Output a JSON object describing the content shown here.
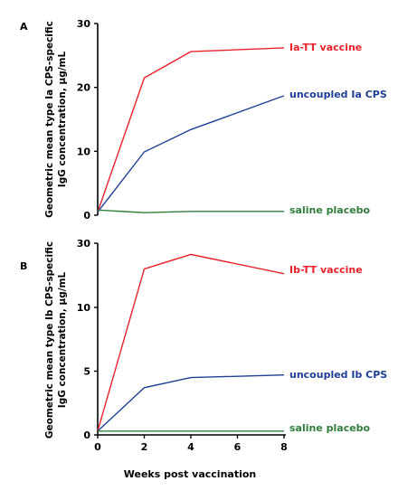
{
  "xlabel": "Weeks post vaccination",
  "chart_data": [
    {
      "type": "line",
      "panel_label": "A",
      "ylabel_lines": [
        "Geometric mean type Ia CPS-specific",
        "IgG concentration, µg/mL"
      ],
      "x": [
        0,
        2,
        4,
        8
      ],
      "xlim": [
        0,
        8
      ],
      "xticks": [
        0,
        2,
        4,
        6,
        8
      ],
      "ylim": [
        0,
        30
      ],
      "yticks": [
        0,
        10,
        20,
        30
      ],
      "grid": false,
      "series": [
        {
          "name": "Ia-TT vaccine",
          "color": "#e8212b",
          "values": [
            0.5,
            21.5,
            25.6,
            26.2
          ]
        },
        {
          "name": "uncoupled Ia CPS",
          "color": "#1f3f94",
          "values": [
            0.5,
            9.9,
            13.4,
            18.7
          ]
        },
        {
          "name": "saline placebo",
          "color": "#2f7d3b",
          "values": [
            0.8,
            0.4,
            0.6,
            0.6
          ]
        }
      ]
    },
    {
      "type": "line",
      "panel_label": "B",
      "ylabel_lines": [
        "Geometric mean type Ib CPS-specific",
        "IgG concentration, µg/mL"
      ],
      "x": [
        0,
        2,
        4,
        8
      ],
      "xlim": [
        0,
        8
      ],
      "xticks": [
        0,
        2,
        4,
        6,
        8
      ],
      "ylim": [
        0,
        30
      ],
      "yticks": [
        0,
        5,
        10,
        30
      ],
      "axis_break": true,
      "grid": false,
      "series": [
        {
          "name": "Ib-TT vaccine",
          "color": "#e8212b",
          "values": [
            0.3,
            22.0,
            26.5,
            20.5
          ]
        },
        {
          "name": "uncoupled Ib CPS",
          "color": "#1f3f94",
          "values": [
            0.3,
            3.7,
            4.5,
            4.7
          ]
        },
        {
          "name": "saline placebo",
          "color": "#2f7d3b",
          "values": [
            0.3,
            0.3,
            0.3,
            0.3
          ]
        }
      ]
    }
  ]
}
